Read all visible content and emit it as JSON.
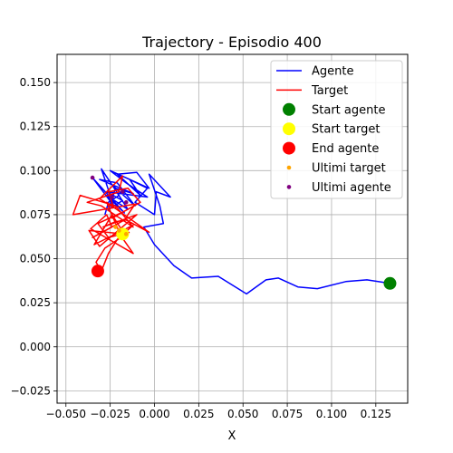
{
  "chart_data": {
    "type": "line",
    "title": "Trajectory - Episodio 400",
    "xlabel": "X",
    "ylabel": "",
    "xlim": [
      -0.055,
      0.143
    ],
    "ylim": [
      -0.032,
      0.166
    ],
    "grid": true,
    "legend_position": "top-right",
    "xticks": [
      -0.05,
      -0.025,
      0.0,
      0.025,
      0.05,
      0.075,
      0.1,
      0.125
    ],
    "xtick_labels": [
      "−0.050",
      "−0.025",
      "0.000",
      "0.025",
      "0.050",
      "0.075",
      "0.100",
      "0.125"
    ],
    "yticks": [
      -0.025,
      0.0,
      0.025,
      0.05,
      0.075,
      0.1,
      0.125,
      0.15
    ],
    "ytick_labels": [
      "−0.025",
      "0.000",
      "0.025",
      "0.050",
      "0.075",
      "0.100",
      "0.125",
      "0.150"
    ],
    "series": [
      {
        "name": "Agente",
        "type": "line",
        "color": "#0000ff",
        "x": [
          0.133,
          0.12,
          0.108,
          0.092,
          0.081,
          0.07,
          0.063,
          0.052,
          0.036,
          0.021,
          0.011,
          0.0,
          -0.006,
          0.005,
          0.003,
          -0.003,
          0.009,
          0.001,
          0.0,
          -0.011,
          -0.004,
          -0.014,
          -0.008,
          -0.021,
          -0.01,
          -0.003,
          -0.025,
          -0.016,
          -0.004,
          -0.027,
          -0.018,
          -0.026,
          -0.022,
          -0.012,
          -0.031,
          -0.021,
          -0.011,
          -0.024,
          -0.015,
          -0.027,
          -0.017,
          -0.035,
          -0.023,
          -0.03,
          -0.02,
          -0.026,
          -0.028
        ],
        "y": [
          0.036,
          0.038,
          0.037,
          0.033,
          0.034,
          0.039,
          0.038,
          0.03,
          0.04,
          0.039,
          0.046,
          0.058,
          0.068,
          0.07,
          0.08,
          0.098,
          0.085,
          0.088,
          0.075,
          0.082,
          0.09,
          0.095,
          0.086,
          0.098,
          0.099,
          0.09,
          0.1,
          0.093,
          0.085,
          0.088,
          0.083,
          0.078,
          0.09,
          0.087,
          0.095,
          0.093,
          0.08,
          0.092,
          0.078,
          0.086,
          0.076,
          0.096,
          0.08,
          0.101,
          0.086,
          0.082,
          0.075
        ]
      },
      {
        "name": "Target",
        "type": "line",
        "color": "#ff0000",
        "x": [
          -0.016,
          -0.028,
          -0.033,
          -0.03,
          -0.026,
          -0.021,
          -0.012,
          -0.034,
          -0.024,
          -0.017,
          -0.037,
          -0.031,
          -0.01,
          -0.029,
          -0.022,
          -0.016,
          -0.003,
          -0.027,
          -0.019,
          -0.012,
          -0.036,
          -0.027,
          -0.024,
          -0.035,
          -0.017,
          -0.011,
          -0.046,
          -0.042,
          -0.022,
          -0.012,
          -0.03,
          -0.038,
          -0.02,
          -0.018,
          -0.031,
          -0.023,
          -0.026,
          -0.015,
          -0.008,
          -0.024,
          -0.019,
          -0.032,
          -0.026,
          -0.014
        ],
        "y": [
          0.064,
          0.056,
          0.048,
          0.043,
          0.053,
          0.061,
          0.069,
          0.058,
          0.075,
          0.064,
          0.066,
          0.057,
          0.075,
          0.068,
          0.071,
          0.072,
          0.065,
          0.082,
          0.063,
          0.053,
          0.067,
          0.075,
          0.068,
          0.062,
          0.072,
          0.081,
          0.075,
          0.086,
          0.08,
          0.068,
          0.08,
          0.082,
          0.088,
          0.097,
          0.084,
          0.079,
          0.088,
          0.09,
          0.082,
          0.073,
          0.076,
          0.07,
          0.062,
          0.065
        ]
      }
    ],
    "markers": [
      {
        "name": "Start agente",
        "color": "#008000",
        "x": 0.133,
        "y": 0.036,
        "size": "large"
      },
      {
        "name": "Start target",
        "color": "#ffff00",
        "x": -0.018,
        "y": 0.064,
        "size": "large"
      },
      {
        "name": "End agente",
        "color": "#ff0000",
        "x": -0.032,
        "y": 0.043,
        "size": "large"
      }
    ],
    "scatter_series": [
      {
        "name": "Ultimi target",
        "color": "#ffa500",
        "x": [
          -0.016,
          -0.02,
          -0.022
        ],
        "y": [
          0.064,
          0.066,
          0.068
        ]
      },
      {
        "name": "Ultimi agente",
        "color": "#800080",
        "x": [
          -0.035,
          -0.024,
          -0.018,
          -0.016
        ],
        "y": [
          0.096,
          0.085,
          0.088,
          0.082
        ]
      }
    ],
    "legend": [
      {
        "label": "Agente",
        "kind": "line",
        "color": "#0000ff"
      },
      {
        "label": "Target",
        "kind": "line",
        "color": "#ff0000"
      },
      {
        "label": "Start agente",
        "kind": "big-dot",
        "color": "#008000"
      },
      {
        "label": "Start target",
        "kind": "big-dot",
        "color": "#ffff00"
      },
      {
        "label": "End agente",
        "kind": "big-dot",
        "color": "#ff0000"
      },
      {
        "label": "Ultimi target",
        "kind": "small-dot",
        "color": "#ffa500"
      },
      {
        "label": "Ultimi agente",
        "kind": "small-dot",
        "color": "#800080"
      }
    ]
  }
}
